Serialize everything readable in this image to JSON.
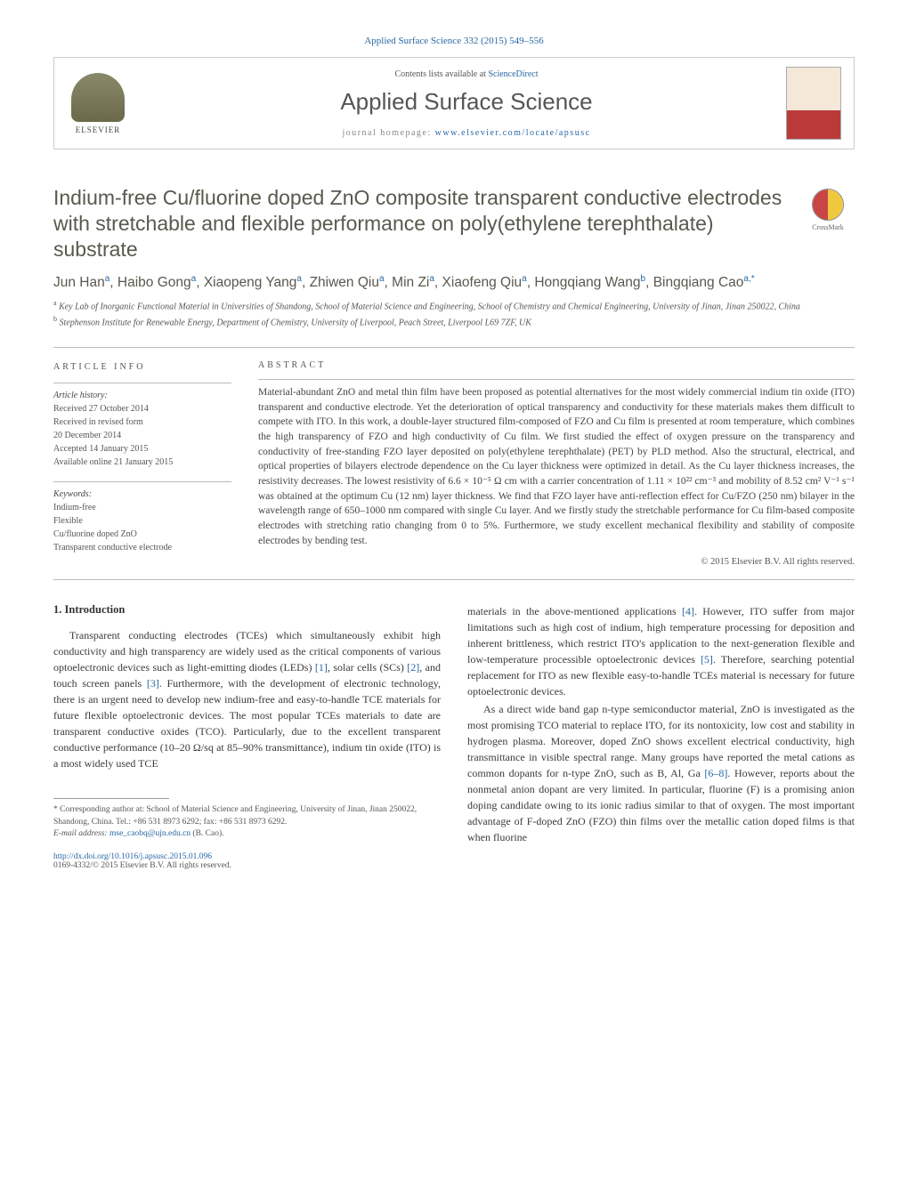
{
  "header": {
    "journal_ref": "Applied Surface Science 332 (2015) 549–556",
    "contents_at": "Contents lists available at ",
    "contents_link": "ScienceDirect",
    "journal_name": "Applied Surface Science",
    "homepage_label": "journal homepage: ",
    "homepage_url": "www.elsevier.com/locate/apsusc",
    "publisher_name": "ELSEVIER",
    "cover_title": "Applied Surface Science"
  },
  "crossmark": {
    "label": "CrossMark"
  },
  "article": {
    "title": "Indium-free Cu/fluorine doped ZnO composite transparent conductive electrodes with stretchable and flexible performance on poly(ethylene terephthalate) substrate",
    "authors_html": "Jun Han<sup>a</sup>, Haibo Gong<sup>a</sup>, Xiaopeng Yang<sup>a</sup>, Zhiwen Qiu<sup>a</sup>, Min Zi<sup>a</sup>, Xiaofeng Qiu<sup>a</sup>, Hongqiang Wang<sup>b</sup>, Bingqiang Cao<sup>a,*</sup>",
    "affiliations": [
      {
        "sup": "a",
        "text": "Key Lab of Inorganic Functional Material in Universities of Shandong, School of Material Science and Engineering, School of Chemistry and Chemical Engineering, University of Jinan, Jinan 250022, China"
      },
      {
        "sup": "b",
        "text": "Stephenson Institute for Renewable Energy, Department of Chemistry, University of Liverpool, Peach Street, Liverpool L69 7ZF, UK"
      }
    ]
  },
  "info": {
    "header": "ARTICLE INFO",
    "history_title": "Article history:",
    "history": [
      "Received 27 October 2014",
      "Received in revised form",
      "20 December 2014",
      "Accepted 14 January 2015",
      "Available online 21 January 2015"
    ],
    "keywords_title": "Keywords:",
    "keywords": [
      "Indium-free",
      "Flexible",
      "Cu/fluorine doped ZnO",
      "Transparent conductive electrode"
    ]
  },
  "abstract": {
    "header": "ABSTRACT",
    "text": "Material-abundant ZnO and metal thin film have been proposed as potential alternatives for the most widely commercial indium tin oxide (ITO) transparent and conductive electrode. Yet the deterioration of optical transparency and conductivity for these materials makes them difficult to compete with ITO. In this work, a double-layer structured film-composed of FZO and Cu film is presented at room temperature, which combines the high transparency of FZO and high conductivity of Cu film. We first studied the effect of oxygen pressure on the transparency and conductivity of free-standing FZO layer deposited on poly(ethylene terephthalate) (PET) by PLD method. Also the structural, electrical, and optical properties of bilayers electrode dependence on the Cu layer thickness were optimized in detail. As the Cu layer thickness increases, the resistivity decreases. The lowest resistivity of 6.6 × 10⁻⁵ Ω cm with a carrier concentration of 1.11 × 10²² cm⁻³ and mobility of 8.52 cm² V⁻¹ s⁻¹ was obtained at the optimum Cu (12 nm) layer thickness. We find that FZO layer have anti-reflection effect for Cu/FZO (250 nm) bilayer in the wavelength range of 650–1000 nm compared with single Cu layer. And we firstly study the stretchable performance for Cu film-based composite electrodes with stretching ratio changing from 0 to 5%. Furthermore, we study excellent mechanical flexibility and stability of composite electrodes by bending test.",
    "copyright": "© 2015 Elsevier B.V. All rights reserved."
  },
  "body": {
    "section1_heading": "1.  Introduction",
    "left_paras": [
      "Transparent conducting electrodes (TCEs) which simultaneously exhibit high conductivity and high transparency are widely used as the critical components of various optoelectronic devices such as light-emitting diodes (LEDs) [1], solar cells (SCs) [2], and touch screen panels [3]. Furthermore, with the development of electronic technology, there is an urgent need to develop new indium-free and easy-to-handle TCE materials for future flexible optoelectronic devices. The most popular TCEs materials to date are transparent conductive oxides (TCO). Particularly, due to the excellent transparent conductive performance (10–20 Ω/sq at 85–90% transmittance), indium tin oxide (ITO) is a most widely used TCE"
    ],
    "right_paras": [
      "materials in the above-mentioned applications [4]. However, ITO suffer from major limitations such as high cost of indium, high temperature processing for deposition and inherent brittleness, which restrict ITO's application to the next-generation flexible and low-temperature processible optoelectronic devices [5]. Therefore, searching potential replacement for ITO as new flexible easy-to-handle TCEs material is necessary for future optoelectronic devices.",
      "As a direct wide band gap n-type semiconductor material, ZnO is investigated as the most promising TCO material to replace ITO, for its nontoxicity, low cost and stability in hydrogen plasma. Moreover, doped ZnO shows excellent electrical conductivity, high transmittance in visible spectral range. Many groups have reported the metal cations as common dopants for n-type ZnO, such as B, Al, Ga [6–8]. However, reports about the nonmetal anion dopant are very limited. In particular, fluorine (F) is a promising anion doping candidate owing to its ionic radius similar to that of oxygen. The most important advantage of F-doped ZnO (FZO) thin films over the metallic cation doped films is that when fluorine"
    ],
    "refs_in_text": {
      "1": "[1]",
      "2": "[2]",
      "3": "[3]",
      "4": "[4]",
      "5": "[5]",
      "68": "[6–8]"
    }
  },
  "footnote": {
    "corresponding": "* Corresponding author at: School of Material Science and Engineering, University of Jinan, Jinan 250022, Shandong, China. Tel.: +86 531 8973 6292; fax: +86 531 8973 6292.",
    "email_label": "E-mail address: ",
    "email": "mse_caobq@ujn.edu.cn",
    "email_author": " (B. Cao)."
  },
  "footer": {
    "doi_url": "http://dx.doi.org/10.1016/j.apsusc.2015.01.096",
    "issn_line": "0169-4332/© 2015 Elsevier B.V. All rights reserved."
  },
  "colors": {
    "link": "#2768a4",
    "title": "#59594d",
    "text": "#3a3a3a",
    "rule": "#bbbbbb"
  }
}
